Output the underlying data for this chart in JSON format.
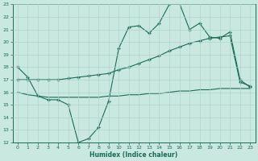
{
  "xlabel": "Humidex (Indice chaleur)",
  "background_color": "#c8e8e0",
  "grid_color": "#b0d4cc",
  "line_color": "#1a6b5a",
  "xlim": [
    -0.5,
    23.5
  ],
  "ylim": [
    12,
    23
  ],
  "xticks": [
    0,
    1,
    2,
    3,
    4,
    5,
    6,
    7,
    8,
    9,
    10,
    11,
    12,
    13,
    14,
    15,
    16,
    17,
    18,
    19,
    20,
    21,
    22,
    23
  ],
  "yticks": [
    12,
    13,
    14,
    15,
    16,
    17,
    18,
    19,
    20,
    21,
    22,
    23
  ],
  "line1_x": [
    0,
    1,
    2,
    3,
    4,
    5,
    6,
    7,
    8,
    9,
    10,
    11,
    12,
    13,
    14,
    15,
    16,
    17,
    18,
    19,
    20,
    21,
    22,
    23
  ],
  "line1_y": [
    18.0,
    17.2,
    15.7,
    15.4,
    15.4,
    15.0,
    12.0,
    12.3,
    13.2,
    15.3,
    19.5,
    21.2,
    21.3,
    20.7,
    21.5,
    23.0,
    23.1,
    21.0,
    21.5,
    20.4,
    20.3,
    20.8,
    17.0,
    16.4
  ],
  "line2_x": [
    0,
    1,
    2,
    3,
    4,
    5,
    6,
    7,
    8,
    9,
    10,
    11,
    12,
    13,
    14,
    15,
    16,
    17,
    18,
    19,
    20,
    21,
    22,
    23
  ],
  "line2_y": [
    17.0,
    17.0,
    17.0,
    17.0,
    17.0,
    17.1,
    17.2,
    17.3,
    17.4,
    17.5,
    17.8,
    18.0,
    18.3,
    18.6,
    18.9,
    19.3,
    19.6,
    19.9,
    20.1,
    20.3,
    20.4,
    20.5,
    16.8,
    16.5
  ],
  "line3_x": [
    0,
    1,
    2,
    3,
    4,
    5,
    6,
    7,
    8,
    9,
    10,
    11,
    12,
    13,
    14,
    15,
    16,
    17,
    18,
    19,
    20,
    21,
    22,
    23
  ],
  "line3_y": [
    16.0,
    15.8,
    15.7,
    15.6,
    15.6,
    15.6,
    15.6,
    15.6,
    15.6,
    15.7,
    15.7,
    15.8,
    15.8,
    15.9,
    15.9,
    16.0,
    16.1,
    16.1,
    16.2,
    16.2,
    16.3,
    16.3,
    16.3,
    16.3
  ]
}
